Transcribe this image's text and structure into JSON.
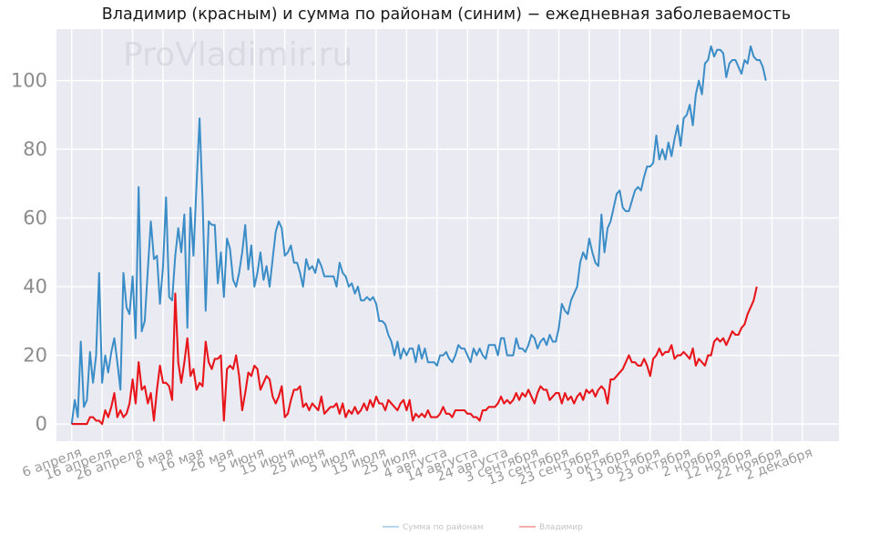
{
  "watermark": "ProVladimir.ru",
  "chart_data": {
    "type": "line",
    "title": "Владимир (красным) и сумма по районам (синим) − ежедневная заболеваемость",
    "xlabel": "",
    "ylabel": "",
    "ylim": [
      -5,
      115
    ],
    "yticks": [
      0,
      20,
      40,
      60,
      80,
      100
    ],
    "xlim": [
      -5,
      252
    ],
    "x_start_date": "6 апреля",
    "xtick_labels": [
      {
        "day": 0,
        "label": "6 апреля"
      },
      {
        "day": 10,
        "label": "16 апреля"
      },
      {
        "day": 20,
        "label": "26 апреля"
      },
      {
        "day": 30,
        "label": "6 мая"
      },
      {
        "day": 40,
        "label": "16 мая"
      },
      {
        "day": 50,
        "label": "26 мая"
      },
      {
        "day": 60,
        "label": "5 июня"
      },
      {
        "day": 70,
        "label": "15 июня"
      },
      {
        "day": 80,
        "label": "25 июня"
      },
      {
        "day": 90,
        "label": "5 июля"
      },
      {
        "day": 100,
        "label": "15 июля"
      },
      {
        "day": 110,
        "label": "25 июля"
      },
      {
        "day": 120,
        "label": "4 августа"
      },
      {
        "day": 130,
        "label": "14 августа"
      },
      {
        "day": 140,
        "label": "24 августа"
      },
      {
        "day": 150,
        "label": "3 сентября"
      },
      {
        "day": 160,
        "label": "13 сентября"
      },
      {
        "day": 170,
        "label": "23 сентября"
      },
      {
        "day": 180,
        "label": "3 октября"
      },
      {
        "day": 190,
        "label": "13 октября"
      },
      {
        "day": 200,
        "label": "23 октября"
      },
      {
        "day": 210,
        "label": "2 ноября"
      },
      {
        "day": 220,
        "label": "12 ноября"
      },
      {
        "day": 230,
        "label": "22 ноября"
      },
      {
        "day": 240,
        "label": "2 декабря"
      }
    ],
    "series": [
      {
        "name": "Сумма по районам",
        "color": "#3a8dc6",
        "values": [
          0,
          7,
          2,
          24,
          5,
          7,
          21,
          12,
          20,
          44,
          12,
          20,
          15,
          21,
          25,
          18,
          10,
          44,
          34,
          32,
          43,
          25,
          69,
          27,
          30,
          45,
          59,
          48,
          49,
          35,
          46,
          66,
          37,
          36,
          49,
          57,
          50,
          61,
          28,
          63,
          49,
          70,
          89,
          65,
          33,
          59,
          58,
          58,
          41,
          50,
          37,
          54,
          51,
          42,
          40,
          44,
          50,
          58,
          45,
          52,
          40,
          44,
          50,
          42,
          46,
          40,
          48,
          56,
          59,
          57,
          49,
          50,
          52,
          47,
          47,
          44,
          40,
          48,
          45,
          46,
          44,
          48,
          46,
          43,
          43,
          43,
          43,
          40,
          47,
          44,
          43,
          40,
          41,
          38,
          40,
          36,
          36,
          37,
          36,
          37,
          35,
          30,
          30,
          29,
          26,
          24,
          20,
          24,
          19,
          22,
          20,
          22,
          22,
          18,
          23,
          19,
          22,
          18,
          18,
          18,
          17,
          20,
          20,
          21,
          19,
          18,
          20,
          23,
          22,
          22,
          20,
          18,
          22,
          20,
          22,
          20,
          19,
          23,
          23,
          23,
          20,
          25,
          25,
          20,
          20,
          20,
          25,
          22,
          22,
          21,
          23,
          26,
          25,
          22,
          24,
          25,
          23,
          26,
          24,
          24,
          28,
          35,
          33,
          32,
          36,
          38,
          40,
          47,
          50,
          48,
          54,
          50,
          47,
          46,
          61,
          50,
          57,
          59,
          63,
          67,
          68,
          63,
          62,
          62,
          65,
          68,
          69,
          68,
          72,
          75,
          75,
          76,
          84,
          77,
          80,
          77,
          82,
          78,
          83,
          87,
          81,
          89,
          90,
          93,
          87,
          96,
          100,
          96,
          105,
          106,
          110,
          107,
          109,
          109,
          108,
          101,
          105,
          106,
          106,
          104,
          102,
          106,
          105,
          110,
          107,
          106,
          106,
          104,
          100
        ]
      },
      {
        "name": "Владимир",
        "color": "#e8161b",
        "values": [
          0,
          0,
          0,
          0,
          0,
          0,
          2,
          2,
          1,
          1,
          0,
          4,
          2,
          5,
          9,
          2,
          4,
          2,
          3,
          6,
          13,
          6,
          18,
          10,
          11,
          6,
          9,
          1,
          10,
          17,
          12,
          12,
          11,
          7,
          38,
          18,
          12,
          18,
          25,
          14,
          16,
          10,
          12,
          11,
          24,
          18,
          16,
          19,
          19,
          20,
          1,
          16,
          17,
          16,
          20,
          14,
          4,
          9,
          15,
          14,
          17,
          16,
          10,
          12,
          14,
          13,
          8,
          6,
          8,
          11,
          2,
          3,
          7,
          10,
          10,
          11,
          5,
          6,
          4,
          6,
          5,
          4,
          8,
          3,
          4,
          5,
          5,
          6,
          3,
          6,
          2,
          4,
          3,
          5,
          3,
          4,
          6,
          4,
          7,
          5,
          8,
          6,
          6,
          4,
          7,
          6,
          5,
          4,
          6,
          7,
          4,
          7,
          1,
          3,
          2,
          3,
          2,
          4,
          2,
          2,
          2,
          3,
          5,
          3,
          3,
          2,
          4,
          4,
          4,
          4,
          3,
          3,
          2,
          2,
          1,
          4,
          4,
          5,
          5,
          5,
          6,
          8,
          6,
          7,
          6,
          7,
          9,
          7,
          9,
          8,
          10,
          8,
          6,
          9,
          11,
          10,
          10,
          7,
          8,
          9,
          9,
          6,
          9,
          7,
          8,
          6,
          8,
          9,
          7,
          10,
          9,
          10,
          8,
          10,
          11,
          10,
          6,
          13,
          13,
          14,
          15,
          16,
          18,
          20,
          18,
          18,
          17,
          17,
          19,
          17,
          14,
          19,
          20,
          22,
          20,
          21,
          21,
          23,
          19,
          20,
          20,
          21,
          20,
          19,
          22,
          17,
          19,
          18,
          17,
          20,
          20,
          24,
          25,
          24,
          25,
          23,
          25,
          27,
          26,
          26,
          28,
          29,
          32,
          34,
          36,
          40
        ]
      }
    ]
  }
}
